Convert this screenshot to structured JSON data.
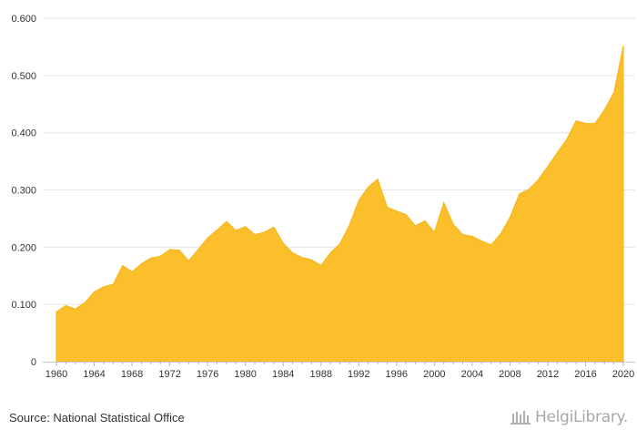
{
  "footer": {
    "source_text": "Source: National Statistical Office",
    "brand_text": "HelgiLibrary."
  },
  "colors": {
    "area_fill": "#FBBF2C",
    "area_stroke": "#F5B418",
    "grid": "#e6e6e6",
    "axis_text": "#333333"
  },
  "chart_data": {
    "type": "area",
    "title": "",
    "xlabel": "",
    "ylabel": "",
    "x_range": [
      1960,
      2020
    ],
    "ylim": [
      0,
      0.6
    ],
    "y_ticks": [
      "0",
      "0.100",
      "0.200",
      "0.300",
      "0.400",
      "0.500",
      "0.600"
    ],
    "y_tick_values": [
      0,
      0.1,
      0.2,
      0.3,
      0.4,
      0.5,
      0.6
    ],
    "x_ticks": [
      "1960",
      "1964",
      "1968",
      "1972",
      "1976",
      "1980",
      "1984",
      "1988",
      "1992",
      "1996",
      "2000",
      "2004",
      "2008",
      "2012",
      "2016",
      "2020"
    ],
    "x_tick_values": [
      1960,
      1964,
      1968,
      1972,
      1976,
      1980,
      1984,
      1988,
      1992,
      1996,
      2000,
      2004,
      2008,
      2012,
      2016,
      2020
    ],
    "grid": true,
    "legend": "none",
    "series": [
      {
        "x": [
          1960,
          1961,
          1962,
          1963,
          1964,
          1965,
          1966,
          1967,
          1968,
          1969,
          1970,
          1971,
          1972,
          1973,
          1974,
          1975,
          1976,
          1977,
          1978,
          1979,
          1980,
          1981,
          1982,
          1983,
          1984,
          1985,
          1986,
          1987,
          1988,
          1989,
          1990,
          1991,
          1992,
          1993,
          1994,
          1995,
          1996,
          1997,
          1998,
          1999,
          2000,
          2001,
          2002,
          2003,
          2004,
          2005,
          2006,
          2007,
          2008,
          2009,
          2010,
          2011,
          2012,
          2013,
          2014,
          2015,
          2016,
          2017,
          2018,
          2019,
          2020
        ],
        "values": [
          0.087,
          0.098,
          0.092,
          0.103,
          0.122,
          0.131,
          0.135,
          0.168,
          0.157,
          0.171,
          0.181,
          0.184,
          0.196,
          0.195,
          0.176,
          0.196,
          0.216,
          0.23,
          0.245,
          0.229,
          0.236,
          0.222,
          0.226,
          0.235,
          0.207,
          0.19,
          0.182,
          0.178,
          0.168,
          0.19,
          0.206,
          0.238,
          0.282,
          0.305,
          0.319,
          0.27,
          0.263,
          0.257,
          0.237,
          0.246,
          0.226,
          0.278,
          0.24,
          0.222,
          0.219,
          0.211,
          0.204,
          0.223,
          0.252,
          0.293,
          0.301,
          0.318,
          0.341,
          0.365,
          0.388,
          0.421,
          0.416,
          0.416,
          0.44,
          0.47,
          0.552
        ]
      }
    ]
  }
}
